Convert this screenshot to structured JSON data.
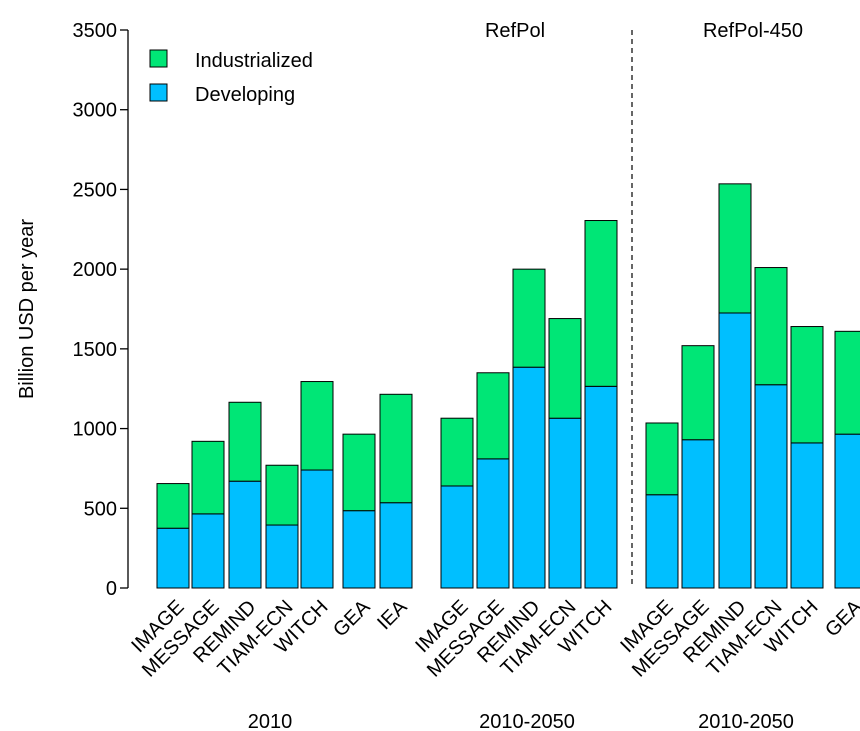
{
  "chart_data": {
    "type": "bar",
    "stacked": true,
    "ylabel": "Billion USD per year",
    "ylim": [
      0,
      3500
    ],
    "yticks": [
      0,
      500,
      1000,
      1500,
      2000,
      2500,
      3000,
      3500
    ],
    "legend": {
      "placement": "top-left",
      "items": [
        {
          "name": "Industrialized",
          "color": "#00e676"
        },
        {
          "name": "Developing",
          "color": "#00bfff"
        }
      ]
    },
    "groups": [
      {
        "xlabel": "2010",
        "panel_label": "",
        "categories": [
          "IMAGE",
          "MESSAGE",
          "REMIND",
          "TIAM-ECN",
          "WITCH",
          "GEA",
          "IEA"
        ],
        "series": [
          {
            "name": "Developing",
            "values": [
              375,
              465,
              670,
              395,
              740,
              485,
              535
            ]
          },
          {
            "name": "Industrialized",
            "values": [
              280,
              455,
              495,
              375,
              555,
              480,
              680
            ]
          }
        ]
      },
      {
        "xlabel": "2010-2050",
        "panel_label": "RefPol",
        "categories": [
          "IMAGE",
          "MESSAGE",
          "REMIND",
          "TIAM-ECN",
          "WITCH"
        ],
        "series": [
          {
            "name": "Developing",
            "values": [
              640,
              810,
              1385,
              1065,
              1265
            ]
          },
          {
            "name": "Industrialized",
            "values": [
              425,
              540,
              615,
              625,
              1040
            ]
          }
        ]
      },
      {
        "xlabel": "2010-2050",
        "panel_label": "RefPol-450",
        "categories": [
          "IMAGE",
          "MESSAGE",
          "REMIND",
          "TIAM-ECN",
          "WITCH",
          "GEA"
        ],
        "series": [
          {
            "name": "Developing",
            "values": [
              585,
              930,
              1725,
              1275,
              910,
              965
            ]
          },
          {
            "name": "Industrialized",
            "values": [
              450,
              590,
              810,
              735,
              730,
              645
            ]
          }
        ]
      }
    ]
  }
}
